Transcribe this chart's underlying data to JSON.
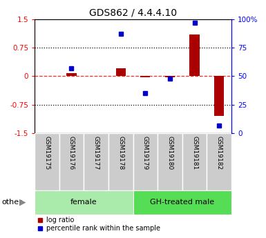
{
  "title": "GDS862 / 4.4.4.10",
  "samples": [
    "GSM19175",
    "GSM19176",
    "GSM19177",
    "GSM19178",
    "GSM19179",
    "GSM19180",
    "GSM19181",
    "GSM19182"
  ],
  "log_ratio": [
    0.0,
    0.08,
    0.0,
    0.2,
    -0.02,
    -0.02,
    1.1,
    -1.05
  ],
  "percentile_rank": [
    null,
    57,
    null,
    87,
    35,
    48,
    97,
    7
  ],
  "groups": [
    {
      "label": "female",
      "start": 0,
      "end": 3,
      "color": "#aaeaaa"
    },
    {
      "label": "GH-treated male",
      "start": 4,
      "end": 7,
      "color": "#55dd55"
    }
  ],
  "ylim_left": [
    -1.5,
    1.5
  ],
  "ylim_right": [
    0,
    100
  ],
  "yticks_left": [
    -1.5,
    -0.75,
    0,
    0.75,
    1.5
  ],
  "ytick_labels_left": [
    "-1.5",
    "-0.75",
    "0",
    "0.75",
    "1.5"
  ],
  "yticks_right": [
    0,
    25,
    50,
    75,
    100
  ],
  "ytick_labels_right": [
    "0",
    "25",
    "50",
    "75",
    "100%"
  ],
  "hlines_dotted": [
    0.75,
    -0.75
  ],
  "hline_dashed": 0.0,
  "bar_color": "#aa0000",
  "dot_color": "#0000cc",
  "background_color": "#ffffff",
  "sample_box_color": "#cccccc",
  "legend_items": [
    "log ratio",
    "percentile rank within the sample"
  ],
  "other_label": "other",
  "bar_width": 0.4
}
